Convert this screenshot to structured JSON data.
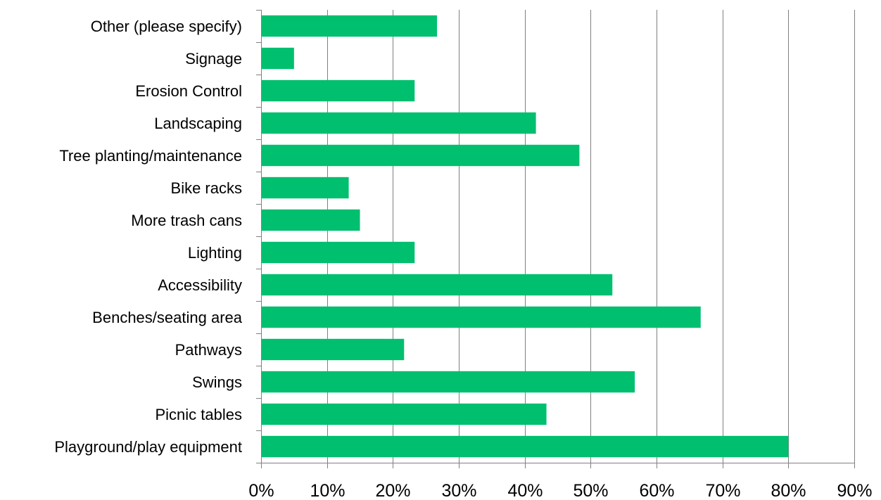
{
  "chart_data": {
    "type": "bar",
    "orientation": "horizontal",
    "title": "",
    "xlabel": "",
    "ylabel": "",
    "categories": [
      "Playground/play equipment",
      "Picnic tables",
      "Swings",
      "Pathways",
      "Benches/seating area",
      "Accessibility",
      "Lighting",
      "More trash cans",
      "Bike racks",
      "Tree planting/maintenance",
      "Landscaping",
      "Erosion Control",
      "Signage",
      "Other (please specify)"
    ],
    "values": [
      80.0,
      43.3,
      56.7,
      21.7,
      66.7,
      53.3,
      23.3,
      15.0,
      13.3,
      48.3,
      41.7,
      23.3,
      5.0,
      26.7
    ],
    "value_unit": "%",
    "xlim": [
      0,
      90
    ],
    "x_ticks": [
      "0%",
      "10%",
      "20%",
      "30%",
      "40%",
      "50%",
      "60%",
      "70%",
      "80%",
      "90%"
    ],
    "grid": "vertical",
    "legend": "none",
    "bar_color": "#00BF6F",
    "grid_color": "#808080"
  }
}
